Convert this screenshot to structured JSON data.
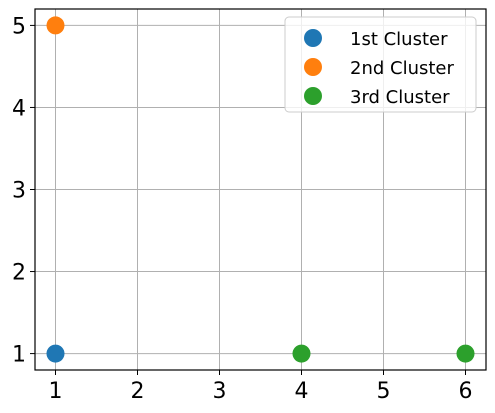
{
  "chart_data": {
    "type": "scatter",
    "title": "",
    "xlabel": "",
    "ylabel": "",
    "xlim": [
      0.75,
      6.25
    ],
    "ylim": [
      0.8,
      5.2
    ],
    "xticks": [
      1,
      2,
      3,
      4,
      5,
      6
    ],
    "yticks": [
      1,
      2,
      3,
      4,
      5
    ],
    "xtick_labels": [
      "1",
      "2",
      "3",
      "4",
      "5",
      "6"
    ],
    "ytick_labels": [
      "1",
      "2",
      "3",
      "4",
      "5"
    ],
    "grid": true,
    "legend_position": "top-right",
    "series": [
      {
        "name": "1st Cluster",
        "color": "#1f77b4",
        "points": [
          {
            "x": 1,
            "y": 1
          }
        ]
      },
      {
        "name": "2nd Cluster",
        "color": "#ff7f0e",
        "points": [
          {
            "x": 1,
            "y": 5
          }
        ]
      },
      {
        "name": "3rd Cluster",
        "color": "#2ca02c",
        "points": [
          {
            "x": 4,
            "y": 1
          },
          {
            "x": 6,
            "y": 1
          }
        ]
      }
    ]
  }
}
